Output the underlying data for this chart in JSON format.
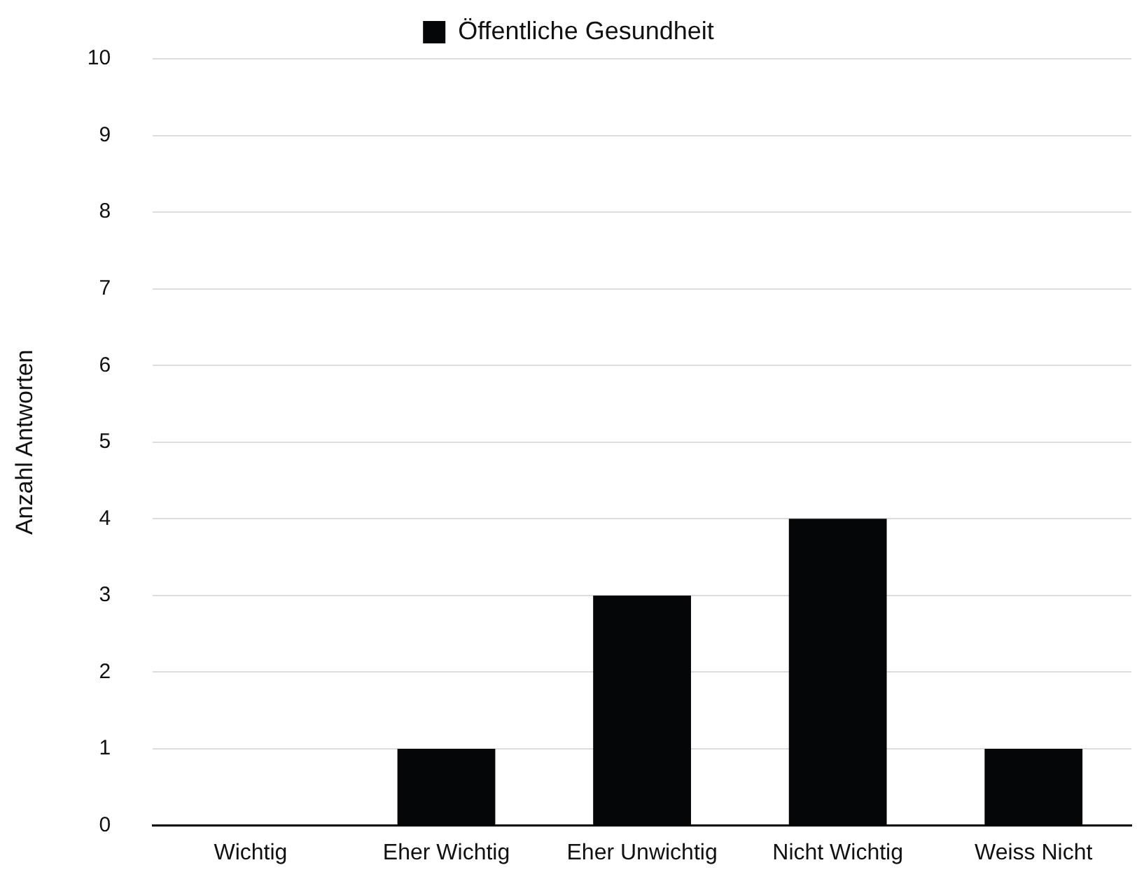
{
  "chart_data": {
    "type": "bar",
    "categories": [
      "Wichtig",
      "Eher Wichtig",
      "Eher Unwichtig",
      "Nicht Wichtig",
      "Weiss Nicht"
    ],
    "series": [
      {
        "name": "Öffentliche Gesundheit",
        "color": "#050608",
        "values": [
          0,
          1,
          3,
          4,
          1
        ]
      }
    ],
    "ylabel": "Anzahl Antworten",
    "ylim": [
      0,
      10
    ],
    "yticks": [
      0,
      1,
      2,
      3,
      4,
      5,
      6,
      7,
      8,
      9,
      10
    ],
    "grid": "y",
    "legend": "top"
  }
}
